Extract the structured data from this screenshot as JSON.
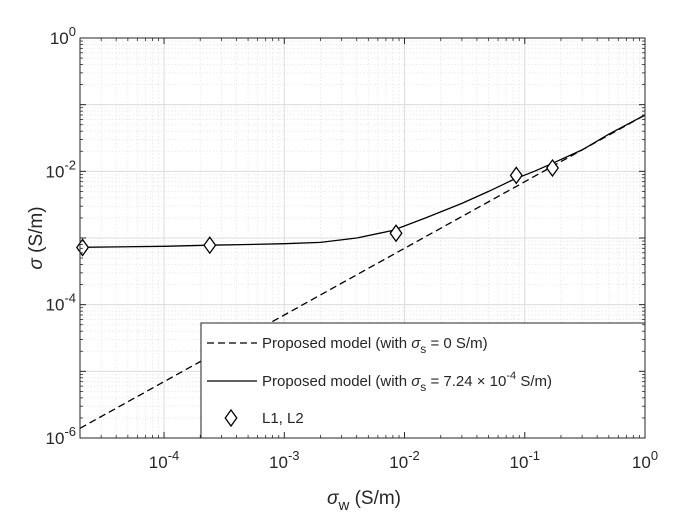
{
  "chart_data": {
    "type": "line",
    "xscale": "log",
    "yscale": "log",
    "xlim": [
      2e-05,
      1
    ],
    "ylim": [
      1e-06,
      1
    ],
    "grid": true,
    "minor_grid": true,
    "legend_position": "bottom-right",
    "xlabel": {
      "symbol": "σ",
      "subscript": "w",
      "unit": " (S/m)"
    },
    "ylabel": {
      "symbol": "σ",
      "unit": " (S/m)"
    },
    "x_ticks": [
      {
        "value": 0.0001,
        "base": "10",
        "exp": "-4"
      },
      {
        "value": 0.001,
        "base": "10",
        "exp": "-3"
      },
      {
        "value": 0.01,
        "base": "10",
        "exp": "-2"
      },
      {
        "value": 0.1,
        "base": "10",
        "exp": "-1"
      },
      {
        "value": 1,
        "base": "10",
        "exp": "0"
      }
    ],
    "y_ticks": [
      {
        "value": 1e-06,
        "base": "10",
        "exp": "-6"
      },
      {
        "value": 0.0001,
        "base": "10",
        "exp": "-4"
      },
      {
        "value": 0.01,
        "base": "10",
        "exp": "-2"
      },
      {
        "value": 1,
        "base": "10",
        "exp": "0"
      }
    ],
    "series": [
      {
        "style": "dashed",
        "color": "#000000",
        "x": [
          2e-05,
          0.0001,
          0.001,
          0.01,
          0.1,
          0.2,
          0.5,
          1
        ],
        "y": [
          1.4e-06,
          7e-06,
          7e-05,
          0.0007,
          0.007,
          0.014,
          0.035,
          0.07
        ]
      },
      {
        "style": "solid",
        "color": "#000000",
        "x": [
          2e-05,
          0.0001,
          0.00024,
          0.0005,
          0.001,
          0.002,
          0.004,
          0.008,
          0.015,
          0.03,
          0.05,
          0.08,
          0.12,
          0.17,
          0.3,
          0.5,
          1
        ],
        "y": [
          0.000725,
          0.00075,
          0.00078,
          0.0008,
          0.00082,
          0.00086,
          0.001,
          0.0013,
          0.002,
          0.0033,
          0.005,
          0.0075,
          0.01,
          0.0132,
          0.021,
          0.036,
          0.07
        ]
      },
      {
        "style": "markers",
        "marker": "diamond",
        "color": "#000000",
        "x": [
          2.1e-05,
          0.00024,
          0.0085,
          0.085,
          0.17
        ],
        "y": [
          0.00072,
          0.00078,
          0.00118,
          0.0087,
          0.0112
        ]
      }
    ],
    "legend": {
      "entries": [
        {
          "style": "dashed",
          "prefix": "Proposed model (with ",
          "symbol": "σ",
          "subscript": "s",
          "rest": " = 0 S/m)"
        },
        {
          "style": "solid",
          "prefix": "Proposed model (with ",
          "symbol": "σ",
          "subscript": "s",
          "rest": " = 7.24 × 10",
          "sup": "-4",
          "rest2": " S/m)"
        },
        {
          "style": "markers",
          "prefix": "L1, L2"
        }
      ]
    }
  }
}
